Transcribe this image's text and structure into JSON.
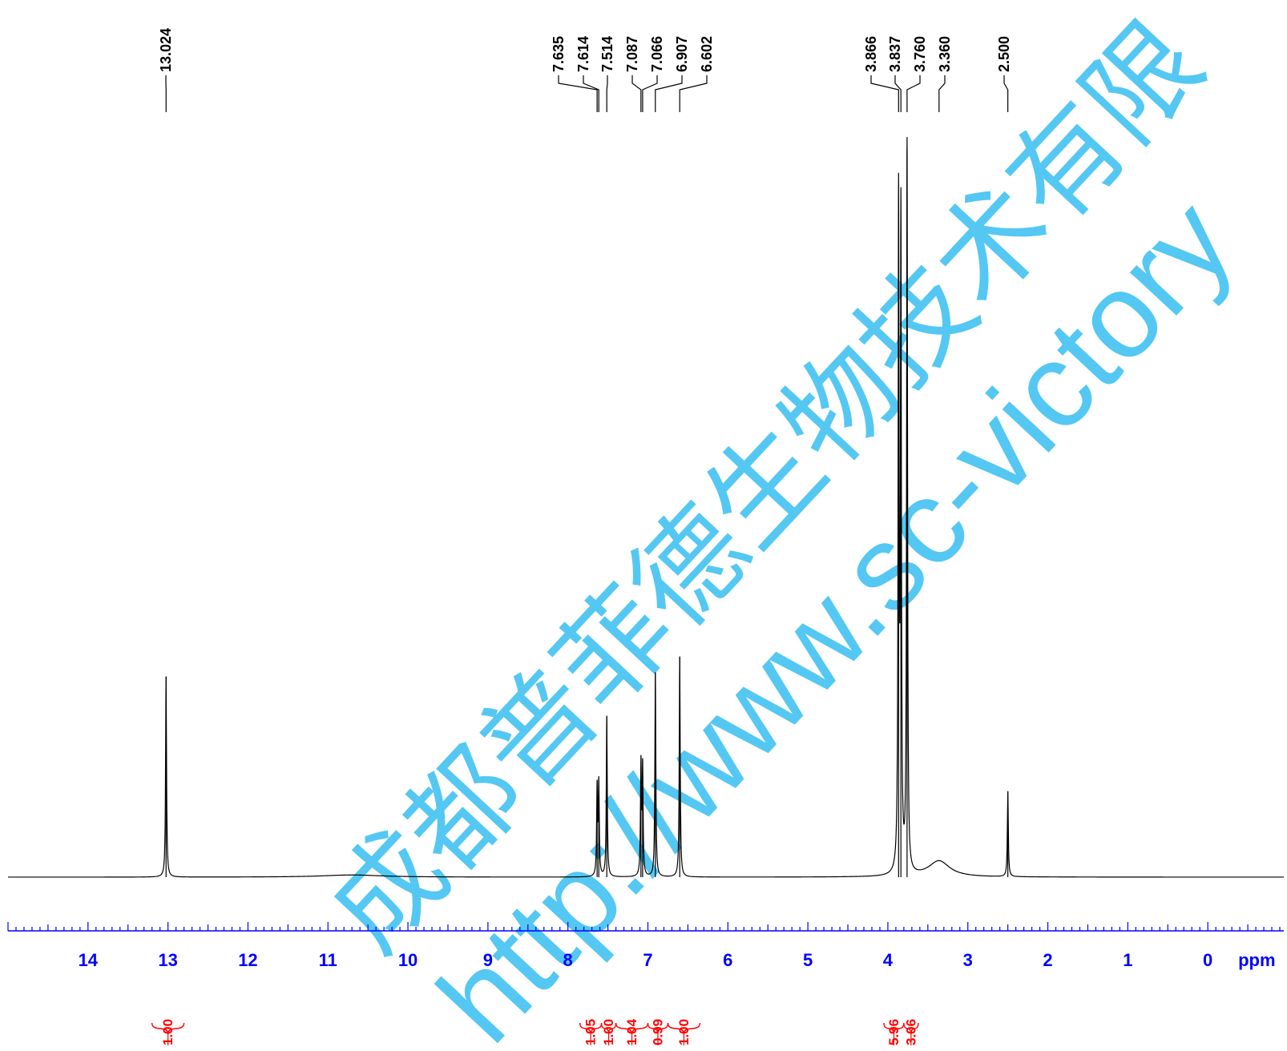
{
  "chart_data": {
    "type": "line",
    "title": "",
    "xlabel": "ppm",
    "ylabel": "",
    "x_reversed": true,
    "xlim": [
      15.0,
      -0.95
    ],
    "x_ticks": [
      "14",
      "13",
      "12",
      "11",
      "10",
      "9",
      "8",
      "7",
      "6",
      "5",
      "4",
      "3",
      "2",
      "1",
      "0"
    ],
    "peak_labels": [
      "13.024",
      "7.635",
      "7.614",
      "7.514",
      "7.087",
      "7.066",
      "6.907",
      "6.602",
      "3.866",
      "3.837",
      "3.760",
      "3.360",
      "2.500"
    ],
    "peaks": [
      {
        "ppm": 13.024,
        "height": 0.275
      },
      {
        "ppm": 7.635,
        "height": 0.12
      },
      {
        "ppm": 7.614,
        "height": 0.125
      },
      {
        "ppm": 7.514,
        "height": 0.22
      },
      {
        "ppm": 7.087,
        "height": 0.152
      },
      {
        "ppm": 7.066,
        "height": 0.147
      },
      {
        "ppm": 6.907,
        "height": 0.28
      },
      {
        "ppm": 6.602,
        "height": 0.302
      },
      {
        "ppm": 3.866,
        "height": 0.91
      },
      {
        "ppm": 3.837,
        "height": 0.885
      },
      {
        "ppm": 3.76,
        "height": 1.0
      },
      {
        "ppm": 2.5,
        "height": 0.117
      }
    ],
    "broad_peaks": [
      {
        "ppm": 3.36,
        "height": 0.022
      },
      {
        "ppm": 10.7,
        "height": 0.003
      }
    ],
    "integrals": [
      {
        "value": "1.00",
        "from": 13.2,
        "to": 12.8
      },
      {
        "value": "1.05",
        "from": 7.85,
        "to": 7.58
      },
      {
        "value": "1.00",
        "from": 7.58,
        "to": 7.4
      },
      {
        "value": "1.04",
        "from": 7.4,
        "to": 7.0
      },
      {
        "value": "0.99",
        "from": 7.0,
        "to": 6.75
      },
      {
        "value": "1.00",
        "from": 6.75,
        "to": 6.35
      },
      {
        "value": "5.96",
        "from": 4.05,
        "to": 3.8
      },
      {
        "value": "3.06",
        "from": 3.8,
        "to": 3.62
      }
    ],
    "colors": {
      "spectrum": "#000000",
      "axis": "#0000ff",
      "integral": "#ff0000",
      "watermark": "#54c8f2"
    }
  },
  "watermark": {
    "chinese": "成都普菲德生物技术有限",
    "url": "http://www.sc-victory"
  }
}
